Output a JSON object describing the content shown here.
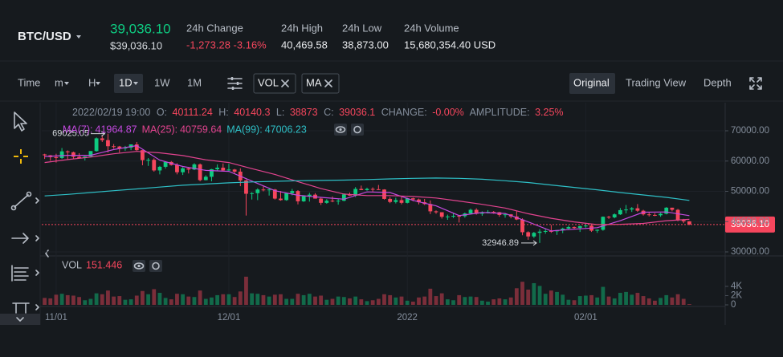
{
  "header": {
    "symbol": "BTC/USD",
    "price": "39,036.10",
    "price_usd": "$39,036.10",
    "stats": [
      {
        "label": "24h Change",
        "value": "-1,273.28 -3.16%"
      },
      {
        "label": "24h High",
        "value": "40,469.58"
      },
      {
        "label": "24h Low",
        "value": "38,873.00"
      },
      {
        "label": "24h Volume",
        "value": "15,680,354.40 USD"
      }
    ]
  },
  "toolbar": {
    "time": "Time",
    "intervals": [
      "m",
      "H",
      "1D",
      "1W",
      "1M"
    ],
    "indicators": [
      "VOL",
      "MA"
    ],
    "views": [
      "Original",
      "Trading View",
      "Depth"
    ]
  },
  "chart": {
    "type": "candlestick",
    "info": {
      "time": "2022/02/19 19:00",
      "o": "O:",
      "h": "H:",
      "l": "L:",
      "c": "C:",
      "change_label": "CHANGE:",
      "change": "-0.00%",
      "amplitude_label": "AMPLITUDE:",
      "amplitude": "3.25%"
    },
    "up_color": "#0ecb81",
    "down_color": "#f6465d",
    "grid": true,
    "xlim": [
      -0.5,
      118.5
    ],
    "xticks": [
      {
        "value": 2,
        "label": "11/01"
      },
      {
        "value": 32,
        "label": "12/01"
      },
      {
        "value": 63,
        "label": "2022"
      },
      {
        "value": 94,
        "label": "02/01"
      }
    ],
    "ylim": [
      28940,
      76090
    ],
    "yticks": [
      {
        "value": 70000,
        "label": "70000.00"
      },
      {
        "value": 60000,
        "label": "60000.00"
      },
      {
        "value": 50000,
        "label": "50000.00"
      },
      {
        "value": 40000,
        "label": "40000.00"
      },
      {
        "value": 30000,
        "label": "30000.00"
      }
    ],
    "last_price_tag": {
      "value": 39036.1,
      "label": "39036.10"
    },
    "candles": [
      [
        62200,
        62400,
        60700,
        61900
      ],
      [
        61900,
        62000,
        60100,
        61300
      ],
      [
        61300,
        62400,
        59500,
        61000
      ],
      [
        61000,
        64300,
        60700,
        63200
      ],
      [
        63200,
        63500,
        60400,
        62900
      ],
      [
        62900,
        63100,
        60700,
        61400
      ],
      [
        61400,
        62600,
        60800,
        61000
      ],
      [
        61000,
        61600,
        60200,
        61500
      ],
      [
        61500,
        63300,
        61300,
        63300
      ],
      [
        63300,
        67800,
        63100,
        67500
      ],
      [
        67500,
        68500,
        66300,
        66900
      ],
      [
        66900,
        69025.05,
        62800,
        64900
      ],
      [
        64900,
        65600,
        64100,
        64800
      ],
      [
        64800,
        65000,
        62800,
        64200
      ],
      [
        64200,
        65000,
        63400,
        64400
      ],
      [
        64400,
        65500,
        63600,
        65500
      ],
      [
        65500,
        66300,
        63400,
        63600
      ],
      [
        63600,
        63600,
        58600,
        60300
      ],
      [
        60300,
        61000,
        58400,
        60400
      ],
      [
        60400,
        60900,
        56500,
        56900
      ],
      [
        56900,
        58400,
        55600,
        58100
      ],
      [
        58100,
        59900,
        57500,
        59700
      ],
      [
        59700,
        60000,
        58500,
        58700
      ],
      [
        58700,
        59300,
        55600,
        56300
      ],
      [
        56300,
        58000,
        55400,
        57600
      ],
      [
        57600,
        57800,
        55900,
        57200
      ],
      [
        57200,
        59300,
        57000,
        58900
      ],
      [
        58900,
        59200,
        53300,
        53700
      ],
      [
        53700,
        55300,
        53600,
        54800
      ],
      [
        54800,
        57400,
        53300,
        57300
      ],
      [
        57300,
        58900,
        56700,
        57800
      ],
      [
        57800,
        59200,
        56600,
        56900
      ],
      [
        56900,
        59100,
        56500,
        57200
      ],
      [
        57200,
        57400,
        55800,
        56500
      ],
      [
        56500,
        57600,
        51700,
        53600
      ],
      [
        53600,
        53900,
        42000,
        49200
      ],
      [
        49200,
        49700,
        47300,
        49400
      ],
      [
        49400,
        51000,
        47100,
        50600
      ],
      [
        50600,
        51900,
        50000,
        50500
      ],
      [
        50500,
        51200,
        48600,
        50600
      ],
      [
        50600,
        50800,
        47300,
        47600
      ],
      [
        47600,
        50100,
        46900,
        47100
      ],
      [
        47100,
        49500,
        46900,
        49400
      ],
      [
        49400,
        50800,
        48700,
        50100
      ],
      [
        50100,
        50400,
        45700,
        46700
      ],
      [
        46700,
        48700,
        46500,
        48400
      ],
      [
        48400,
        49500,
        46600,
        48900
      ],
      [
        48900,
        49400,
        47600,
        47600
      ],
      [
        47600,
        47900,
        45500,
        46200
      ],
      [
        46200,
        47400,
        45900,
        46900
      ],
      [
        46900,
        48300,
        46400,
        46700
      ],
      [
        46700,
        47500,
        45600,
        46900
      ],
      [
        46900,
        49300,
        46700,
        49000
      ],
      [
        49000,
        49600,
        48500,
        48600
      ],
      [
        48600,
        51400,
        48100,
        50800
      ],
      [
        50800,
        51900,
        50400,
        50400
      ],
      [
        50400,
        51200,
        50200,
        50800
      ],
      [
        50800,
        51300,
        49900,
        50700
      ],
      [
        50700,
        52100,
        50500,
        50600
      ],
      [
        50600,
        50700,
        47300,
        47500
      ],
      [
        47500,
        48100,
        46100,
        46500
      ],
      [
        46500,
        47900,
        46000,
        47100
      ],
      [
        47100,
        48500,
        45700,
        46200
      ],
      [
        46200,
        47900,
        46000,
        47700
      ],
      [
        47700,
        47900,
        46700,
        47300
      ],
      [
        47300,
        47600,
        45700,
        46400
      ],
      [
        46400,
        47500,
        45500,
        45800
      ],
      [
        45800,
        47000,
        42500,
        43400
      ],
      [
        43400,
        43700,
        42600,
        43100
      ],
      [
        43100,
        43100,
        41000,
        41600
      ],
      [
        41600,
        42300,
        40600,
        41700
      ],
      [
        41700,
        42800,
        41200,
        41900
      ],
      [
        41900,
        42200,
        39700,
        41800
      ],
      [
        41800,
        43000,
        41300,
        42700
      ],
      [
        42700,
        44300,
        42500,
        43900
      ],
      [
        43900,
        44400,
        42300,
        42600
      ],
      [
        42600,
        43400,
        41900,
        43100
      ],
      [
        43100,
        43800,
        42700,
        43200
      ],
      [
        43200,
        43500,
        42600,
        43100
      ],
      [
        43100,
        43200,
        41600,
        42200
      ],
      [
        42200,
        42700,
        41300,
        42400
      ],
      [
        42400,
        42500,
        41100,
        41700
      ],
      [
        41700,
        43500,
        40500,
        40700
      ],
      [
        40700,
        41100,
        35500,
        36500
      ],
      [
        36500,
        36800,
        34000,
        35100
      ],
      [
        35100,
        36600,
        34600,
        36300
      ],
      [
        36300,
        37500,
        32946.89,
        36700
      ],
      [
        36700,
        37600,
        36000,
        36900
      ],
      [
        36900,
        38900,
        36300,
        36800
      ],
      [
        36800,
        37200,
        35600,
        37200
      ],
      [
        37200,
        38000,
        36200,
        37700
      ],
      [
        37700,
        38700,
        37500,
        38200
      ],
      [
        38200,
        38400,
        37400,
        37900
      ],
      [
        37900,
        38700,
        36600,
        38500
      ],
      [
        38500,
        39200,
        38000,
        38700
      ],
      [
        38700,
        38900,
        36600,
        37000
      ],
      [
        37000,
        37400,
        36300,
        37300
      ],
      [
        37300,
        41700,
        37000,
        41600
      ],
      [
        41600,
        41900,
        40900,
        41400
      ],
      [
        41400,
        42700,
        41100,
        42400
      ],
      [
        42400,
        44500,
        42200,
        43800
      ],
      [
        43800,
        45500,
        42700,
        44000
      ],
      [
        44000,
        44800,
        43200,
        44400
      ],
      [
        44400,
        45800,
        43200,
        43600
      ],
      [
        43600,
        43900,
        42000,
        42400
      ],
      [
        42400,
        43000,
        41700,
        42200
      ],
      [
        42200,
        42800,
        41800,
        42100
      ],
      [
        42100,
        42900,
        41600,
        42600
      ],
      [
        42600,
        44800,
        42400,
        44600
      ],
      [
        44600,
        44600,
        43400,
        43900
      ],
      [
        43900,
        44200,
        40100,
        40500
      ],
      [
        40500,
        40900,
        39500,
        40100
      ],
      [
        40111.24,
        40140.3,
        38873,
        39036.1
      ]
    ],
    "ma": [
      {
        "name": "MA(7):",
        "color": "#c449e0",
        "x": [
          0,
          4,
          8,
          12,
          16,
          20,
          24,
          28,
          32,
          36,
          40,
          44,
          48,
          52,
          56,
          60,
          64,
          68,
          72,
          76,
          80,
          84,
          88,
          92,
          96,
          100,
          104,
          108,
          112
        ],
        "values": [
          61500,
          61900,
          61900,
          63800,
          65100,
          60300,
          58200,
          56900,
          56600,
          53400,
          50200,
          48700,
          48000,
          47400,
          49800,
          49600,
          47000,
          45200,
          42000,
          43000,
          42700,
          39900,
          36900,
          37500,
          38000,
          40300,
          43100,
          43200,
          41964.87
        ]
      },
      {
        "name": "MA(25):",
        "color": "#e2438f",
        "x": [
          0,
          4,
          8,
          12,
          16,
          20,
          24,
          28,
          32,
          36,
          40,
          44,
          48,
          52,
          56,
          60,
          64,
          68,
          72,
          76,
          80,
          84,
          88,
          92,
          96,
          100,
          104,
          108,
          112
        ],
        "values": [
          59500,
          60500,
          61300,
          62400,
          63200,
          62700,
          61800,
          60400,
          59500,
          57500,
          55600,
          53200,
          50900,
          49100,
          48600,
          48600,
          48300,
          47800,
          46800,
          45700,
          44500,
          42600,
          41100,
          39900,
          39000,
          39100,
          39400,
          40300,
          40759.64
        ]
      },
      {
        "name": "MA(99):",
        "color": "#2ebfc6",
        "x": [
          0,
          4,
          8,
          12,
          16,
          20,
          24,
          28,
          32,
          36,
          40,
          44,
          48,
          52,
          56,
          60,
          64,
          68,
          72,
          76,
          80,
          84,
          88,
          92,
          96,
          100,
          104,
          108,
          112
        ],
        "values": [
          48500,
          49000,
          49600,
          50200,
          50800,
          51400,
          52000,
          52400,
          52800,
          53100,
          53300,
          53500,
          53600,
          53700,
          53900,
          54100,
          54300,
          54400,
          54300,
          54000,
          53500,
          52900,
          52100,
          51300,
          50500,
          49600,
          48800,
          48000,
          47006.23
        ]
      }
    ],
    "volume": {
      "label": "VOL",
      "ylim": [
        0,
        6950
      ],
      "yticks": [
        {
          "value": 4000,
          "label": "4K"
        },
        {
          "value": 2000,
          "label": "2K"
        },
        0
      ],
      "values": [
        1500,
        1400,
        2200,
        2400,
        2100,
        2000,
        1700,
        1000,
        1300,
        2500,
        2300,
        3100,
        1800,
        1900,
        1100,
        1200,
        2000,
        3000,
        2300,
        3400,
        2600,
        1500,
        1200,
        2400,
        2300,
        1800,
        1700,
        3100,
        1300,
        1600,
        2100,
        2300,
        2300,
        1700,
        2900,
        6100,
        2500,
        2400,
        2100,
        1800,
        2200,
        2300,
        1300,
        1300,
        2400,
        2100,
        2400,
        1800,
        2000,
        1100,
        1300,
        1800,
        1700,
        1400,
        1800,
        1200,
        800,
        1000,
        1300,
        2300,
        2100,
        1600,
        1800,
        900,
        700,
        1600,
        1800,
        3500,
        1900,
        2500,
        1200,
        1000,
        2100,
        1700,
        1800,
        1700,
        900,
        700,
        1200,
        1400,
        1200,
        1600,
        3600,
        5000,
        3300,
        4700,
        4100,
        2400,
        3100,
        2800,
        2200,
        1100,
        1000,
        1900,
        2000,
        2100,
        1600,
        3900,
        1800,
        1400,
        2600,
        2800,
        2200,
        2600,
        1900,
        1400,
        900,
        1500,
        2100,
        1600,
        2300,
        1300,
        151.446
      ]
    }
  }
}
